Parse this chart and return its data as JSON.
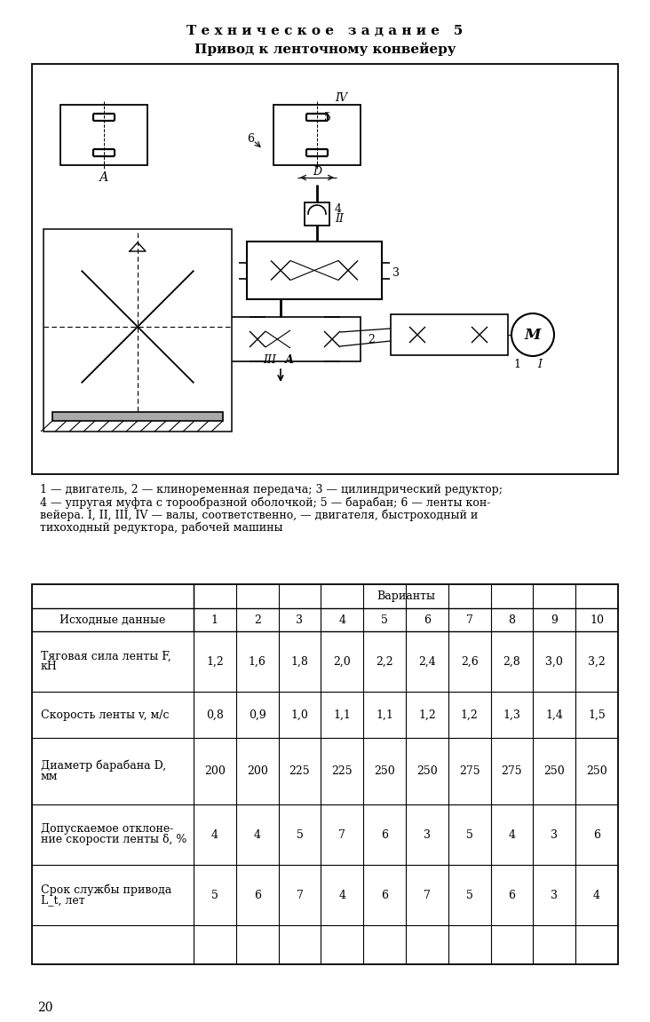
{
  "title1": "Т е х н и ч е с к о е   з а д а н и е   5",
  "title2": "Привод к ленточному конвейеру",
  "caption_lines": [
    "1 — двигатель, 2 — клиноременная передача; 3 — цилиндрический редуктор;",
    "4 — упругая муфта с торообразной оболочкой; 5 — барабан; 6 — ленты кон-",
    "вейера. I, II, III, IV — валы, соответственно, — двигателя, быстроходный и",
    "тихоходный редуктора, рабочей машины"
  ],
  "page_number": "20",
  "table_rows": [
    {
      "label_line1": "Тяговая сила ленты F,",
      "label_line2": "кН",
      "values": [
        "1,2",
        "1,6",
        "1,8",
        "2,0",
        "2,2",
        "2,4",
        "2,6",
        "2,8",
        "3,0",
        "3,2"
      ]
    },
    {
      "label_line1": "Скорость ленты v, м/с",
      "label_line2": "",
      "values": [
        "0,8",
        "0,9",
        "1,0",
        "1,1",
        "1,1",
        "1,2",
        "1,2",
        "1,3",
        "1,4",
        "1,5"
      ]
    },
    {
      "label_line1": "Диаметр барабана D,",
      "label_line2": "мм",
      "values": [
        "200",
        "200",
        "225",
        "225",
        "250",
        "250",
        "275",
        "275",
        "250",
        "250"
      ]
    },
    {
      "label_line1": "Допускаемое отклоне-",
      "label_line2": "ние скорости ленты δ, %",
      "values": [
        "4",
        "4",
        "5",
        "7",
        "6",
        "3",
        "5",
        "4",
        "3",
        "6"
      ]
    },
    {
      "label_line1": "Срок службы привода",
      "label_line2": "L_t, лет",
      "values": [
        "5",
        "6",
        "7",
        "4",
        "6",
        "7",
        "5",
        "6",
        "3",
        "4"
      ]
    }
  ],
  "bg_color": "#ffffff"
}
